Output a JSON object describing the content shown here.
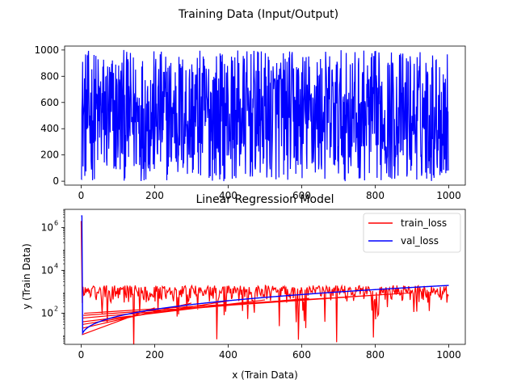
{
  "figure": {
    "suptitle": "Training Data (Input/Output)"
  },
  "chart_data": [
    {
      "type": "line",
      "title": "",
      "xlabel": "",
      "ylabel": "",
      "xlim": [
        -45,
        1045
      ],
      "ylim": [
        -30,
        1030
      ],
      "x_ticks": [
        0,
        200,
        400,
        600,
        800,
        1000
      ],
      "y_ticks": [
        0,
        200,
        400,
        600,
        800,
        1000
      ],
      "x_tick_labels": [
        "0",
        "200",
        "400",
        "600",
        "800",
        "1000"
      ],
      "y_tick_labels": [
        "0",
        "200",
        "400",
        "600",
        "800",
        "1000"
      ],
      "grid": false,
      "series": [
        {
          "color": "#0000ff",
          "description": "dense random noise series, 1000 points, values uniformly between 0 and 1000",
          "x_range": [
            0,
            1000
          ],
          "n_points": 1000,
          "value_range": [
            0,
            1000
          ]
        }
      ]
    },
    {
      "type": "line",
      "title": "Linear Regression Model",
      "xlabel": "x (Train Data)",
      "ylabel": "y (Train Data)",
      "xlim": [
        -45,
        1045
      ],
      "y_scale": "log",
      "ylim_log10": [
        0.55,
        6.85
      ],
      "x_ticks": [
        0,
        200,
        400,
        600,
        800,
        1000
      ],
      "x_tick_labels": [
        "0",
        "200",
        "400",
        "600",
        "800",
        "1000"
      ],
      "y_ticks_exp": [
        2,
        4,
        6
      ],
      "y_tick_label_base": "10",
      "y_tick_label_exps": [
        "2",
        "4",
        "6"
      ],
      "legend": {
        "position": "upper right",
        "entries": [
          {
            "label": "train_loss",
            "color": "#ff0000"
          },
          {
            "label": "val_loss",
            "color": "#0000ff"
          }
        ]
      },
      "series": [
        {
          "name": "train_loss",
          "color": "#ff0000",
          "start_value": 2000000,
          "drops_to_after_x": 5,
          "plateau_range": [
            300,
            2000
          ],
          "spike_down_min": 2
        },
        {
          "name": "val_loss",
          "color": "#0000ff",
          "start_value": 3500000,
          "rises_from": 5,
          "end_value": 2000
        }
      ]
    }
  ]
}
